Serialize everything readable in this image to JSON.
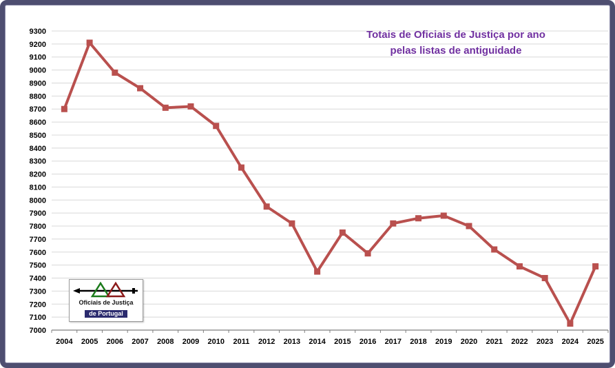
{
  "title": {
    "line1": "Totais de Oficiais de Justiça por ano",
    "line2": "pelas listas de antiguidade",
    "color": "#7030a0"
  },
  "logo": {
    "line1": "Oficiais de Justiça",
    "line2": "de Portugal"
  },
  "chart_data": {
    "type": "line",
    "title": "Totais de Oficiais de Justiça por ano pelas listas de antiguidade",
    "categories": [
      "2004",
      "2005",
      "2006",
      "2007",
      "2008",
      "2009",
      "2010",
      "2011",
      "2012",
      "2013",
      "2014",
      "2015",
      "2016",
      "2017",
      "2018",
      "2019",
      "2020",
      "2021",
      "2022",
      "2023",
      "2024",
      "2025"
    ],
    "series": [
      {
        "name": "Totais de Oficiais de Justiça",
        "values": [
          8700,
          9210,
          8980,
          8860,
          8710,
          8720,
          8570,
          8250,
          7950,
          7820,
          7450,
          7750,
          7590,
          7820,
          7860,
          7880,
          7800,
          7620,
          7490,
          7400,
          7050,
          7490
        ]
      }
    ],
    "xlabel": "",
    "ylabel": "",
    "ylim": [
      7000,
      9300
    ],
    "ytick": 100,
    "grid": true,
    "legend": "none",
    "line_color": "#b9504e",
    "marker": "square"
  }
}
